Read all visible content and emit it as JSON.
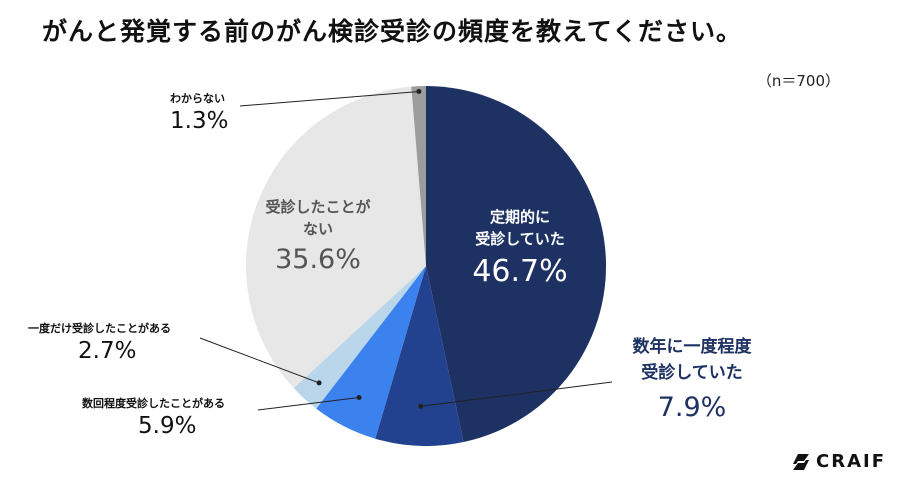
{
  "title": "がんと発覚する前のがん検診受診の頻度を教えてください。",
  "sample_size": "（n＝700）",
  "brand": "CRAIF",
  "chart_data": {
    "type": "pie",
    "title": "がんと発覚する前のがん検診受診の頻度を教えてください。",
    "unit": "%",
    "slices": [
      {
        "label": "定期的に受診していた",
        "value": 46.7,
        "value_label": "46.7%",
        "color": "#1e3163"
      },
      {
        "label": "数年に一度程度受診していた",
        "value": 7.9,
        "value_label": "7.9%",
        "color": "#22418e"
      },
      {
        "label": "数回程度受診したことがある",
        "value": 5.9,
        "value_label": "5.9%",
        "color": "#3b82ee"
      },
      {
        "label": "一度だけ受診したことがある",
        "value": 2.7,
        "value_label": "2.7%",
        "color": "#b9d6ea"
      },
      {
        "label": "受診したことがない",
        "value": 35.6,
        "value_label": "35.6%",
        "color": "#e7e7e7"
      },
      {
        "label": "わからない",
        "value": 1.3,
        "value_label": "1.3%",
        "color": "#9c9c9c"
      }
    ],
    "display": {
      "s0_line1": "定期的に",
      "s0_line2": "受診していた",
      "s1_line1": "数年に一度程度",
      "s1_line2": "受診していた",
      "s4_line1": "受診したことが",
      "s4_line2": "ない"
    }
  }
}
